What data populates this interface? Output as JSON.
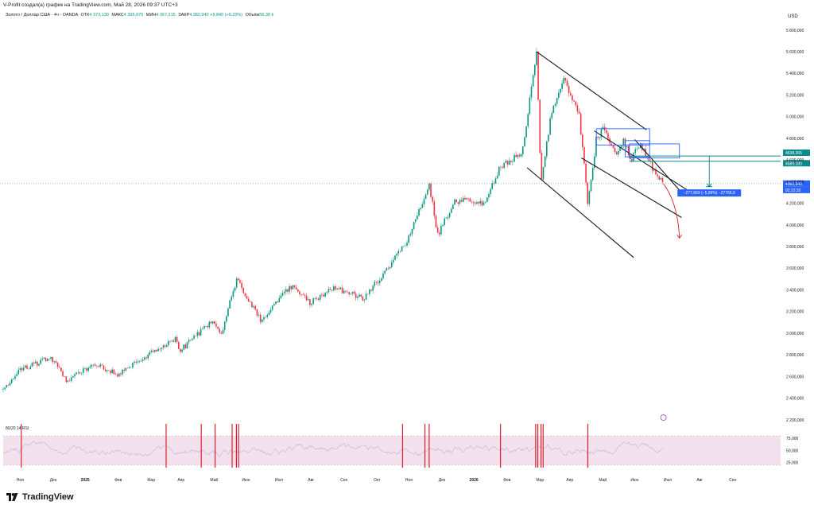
{
  "header": {
    "credit": "V-Profit создал(а) график на TradingView.com, Май 28, 2026 09:37 UTC+3",
    "symbol": "Золото / Доллар США · 4ч · OANDA",
    "open_label": "ОТК",
    "open_value": "4 373,130",
    "high_label": "МАКС",
    "high_value": "4 395,970",
    "low_label": "МИН",
    "low_value": "4 367,215",
    "close_label": "ЗАКР",
    "close_value": "4 382,940",
    "change": "+9,840 (+0,23%)",
    "volume_label": "Объём",
    "volume_value": "50,38 k"
  },
  "currency": "USD",
  "brand": "TradingView",
  "price_tags": {
    "upper_line": "4638,365",
    "lower_line": "4589,180",
    "current": "4382,940",
    "countdown": "02:22:32",
    "measure": "−277,669 (−5,99%) −27766,9"
  },
  "rsi_label": "80/20 14 RSI",
  "colors": {
    "candle_up": "#089981",
    "candle_down": "#f23645",
    "channel": "#131722",
    "box": "#2962ff",
    "level": "#0b8a8a",
    "rsi_band": "#f3e1ee",
    "rsi_line": "#bdb7c9",
    "signal": "#e01e2b",
    "tag_blue": "#2962ff",
    "tag_teal": "#0b8a8a"
  },
  "chart_data": [
    {
      "type": "candlestick",
      "title": "Золото / Доллар США · 4ч · OANDA",
      "xlabel": "",
      "ylabel": "USD",
      "ylim": [
        2200,
        5800
      ],
      "y_ticks": [
        2200,
        2400,
        2600,
        2800,
        3000,
        3200,
        3400,
        3600,
        3800,
        4000,
        4200,
        4400,
        4600,
        4800,
        5000,
        5200,
        5400,
        5600,
        5800
      ],
      "y_tick_labels": [
        "2 200,000",
        "2 400,000",
        "2 600,000",
        "2 800,000",
        "3 000,000",
        "3 200,000",
        "3 400,000",
        "3 600,000",
        "3 800,000",
        "4 000,000",
        "4 200,000",
        "4 400,000",
        "4 600,000",
        "4 800,000",
        "5 000,000",
        "5 200,000",
        "5 400,000",
        "5 600,000",
        "5 800,000"
      ],
      "x_ticks": [
        "Окт",
        "Ноя",
        "Дек",
        "2025",
        "Фев",
        "Мар",
        "Апр",
        "Май",
        "Июн",
        "Июл",
        "Авг",
        "Сен",
        "Окт",
        "Ноя",
        "Дек",
        "2026",
        "Фев",
        "Мар",
        "Апр",
        "Май",
        "Июн",
        "Июл",
        "Авг",
        "Сен"
      ],
      "x_range": [
        "2024-09-15",
        "2026-09-15"
      ],
      "price_path": [
        [
          "2024-09-15",
          2480
        ],
        [
          "2024-10-01",
          2660
        ],
        [
          "2024-10-30",
          2780
        ],
        [
          "2024-11-14",
          2560
        ],
        [
          "2024-12-10",
          2720
        ],
        [
          "2024-12-31",
          2620
        ],
        [
          "2025-01-31",
          2810
        ],
        [
          "2025-02-24",
          2950
        ],
        [
          "2025-02-28",
          2840
        ],
        [
          "2025-03-31",
          3120
        ],
        [
          "2025-04-07",
          2970
        ],
        [
          "2025-04-22",
          3500
        ],
        [
          "2025-05-15",
          3120
        ],
        [
          "2025-06-13",
          3440
        ],
        [
          "2025-06-30",
          3280
        ],
        [
          "2025-07-22",
          3420
        ],
        [
          "2025-08-20",
          3320
        ],
        [
          "2025-08-29",
          3440
        ],
        [
          "2025-09-30",
          3860
        ],
        [
          "2025-10-20",
          4380
        ],
        [
          "2025-10-28",
          3900
        ],
        [
          "2025-11-13",
          4230
        ],
        [
          "2025-12-10",
          4200
        ],
        [
          "2025-12-26",
          4550
        ],
        [
          "2026-01-15",
          4650
        ],
        [
          "2026-01-29",
          5600
        ],
        [
          "2026-02-02",
          4400
        ],
        [
          "2026-02-12",
          5050
        ],
        [
          "2026-02-24",
          5350
        ],
        [
          "2026-03-10",
          5000
        ],
        [
          "2026-03-18",
          4200
        ],
        [
          "2026-03-26",
          4800
        ],
        [
          "2026-04-01",
          4880
        ],
        [
          "2026-04-14",
          4650
        ],
        [
          "2026-04-20",
          4780
        ],
        [
          "2026-04-28",
          4600
        ],
        [
          "2026-05-05",
          4740
        ],
        [
          "2026-05-12",
          4650
        ],
        [
          "2026-05-20",
          4480
        ],
        [
          "2026-05-28",
          4382.94
        ]
      ],
      "current_price": 4382.94,
      "levels": [
        4638.365,
        4589.18
      ],
      "measure": {
        "change": -277.669,
        "percent": -5.99,
        "ticks": -27766.9
      },
      "projection": [
        [
          "2026-05-28",
          4382.94
        ],
        [
          "2026-06-06",
          4200
        ],
        [
          "2026-06-12",
          3880
        ]
      ]
    },
    {
      "type": "line",
      "title": "80/20 14 RSI",
      "ylim": [
        15,
        85
      ],
      "bands": [
        20,
        80
      ],
      "y_ticks": [
        25,
        50,
        75
      ],
      "y_tick_labels": [
        "25,000",
        "50,000",
        "75,000"
      ]
    }
  ]
}
